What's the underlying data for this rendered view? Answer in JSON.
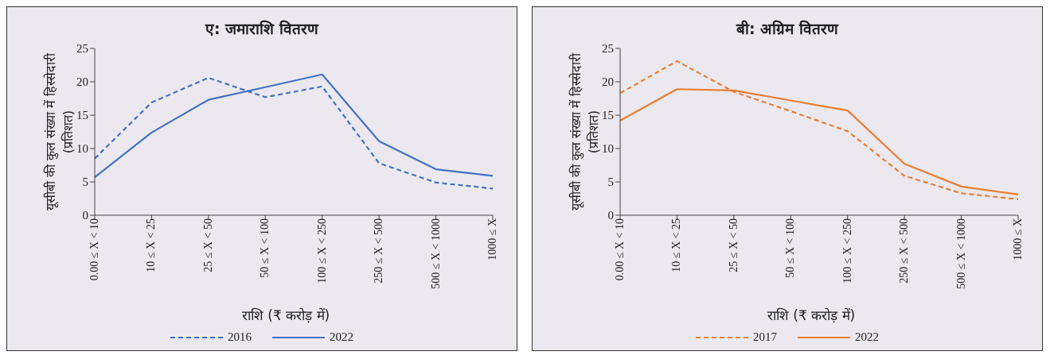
{
  "chart_data": [
    {
      "type": "line",
      "title": "ए: जमाराशि वितरण",
      "xlabel": "राशि (₹ करोड़ में)",
      "ylabel": "यूसीबी की कुल संख्या में हिस्सेदारी (प्रतिशत)",
      "categories": [
        "0.00 ≤ X < 10",
        "10 ≤ X < 25",
        "25 ≤ X < 50",
        "50 ≤ X < 100",
        "100 ≤ X < 250",
        "250 ≤ X < 500",
        "500 ≤ X < 1000",
        "1000 ≤ X"
      ],
      "series": [
        {
          "name": "2016",
          "color": "#4472c4",
          "line_style": "dashed",
          "values": [
            8.5,
            16.9,
            20.6,
            17.7,
            19.3,
            7.8,
            4.9,
            4.0
          ]
        },
        {
          "name": "2022",
          "color": "#4472c4",
          "line_style": "solid",
          "values": [
            5.7,
            12.4,
            17.3,
            19.2,
            21.1,
            11.1,
            6.9,
            5.9
          ]
        }
      ],
      "ylim": [
        0,
        25
      ],
      "yticks": [
        0,
        5,
        10,
        15,
        20,
        25
      ],
      "grid": false,
      "legend": "bottom",
      "marker": "none"
    },
    {
      "type": "line",
      "title": "बी: अग्रिम वितरण",
      "xlabel": "राशि (₹ करोड़ में)",
      "ylabel": "यूसीबी की कुल संख्या में हिस्सेदारी (प्रतिशत)",
      "categories": [
        "0.00 ≤ X < 10",
        "10 ≤ X < 25",
        "25 ≤ X < 50",
        "50 ≤ X < 100",
        "100 ≤ X < 250",
        "250 ≤ X < 500",
        "500 ≤ X < 1000",
        "1000 ≤ X"
      ],
      "series": [
        {
          "name": "2017",
          "color": "#ed7d31",
          "line_style": "dashed",
          "values": [
            18.3,
            23.1,
            18.5,
            15.6,
            12.6,
            5.9,
            3.3,
            2.4
          ]
        },
        {
          "name": "2022",
          "color": "#ed7d31",
          "line_style": "solid",
          "values": [
            14.2,
            18.9,
            18.7,
            17.2,
            15.7,
            7.7,
            4.3,
            3.1
          ]
        }
      ],
      "ylim": [
        0,
        25
      ],
      "yticks": [
        0,
        5,
        10,
        15,
        20,
        25
      ],
      "grid": false,
      "legend": "bottom",
      "marker": "none"
    }
  ]
}
